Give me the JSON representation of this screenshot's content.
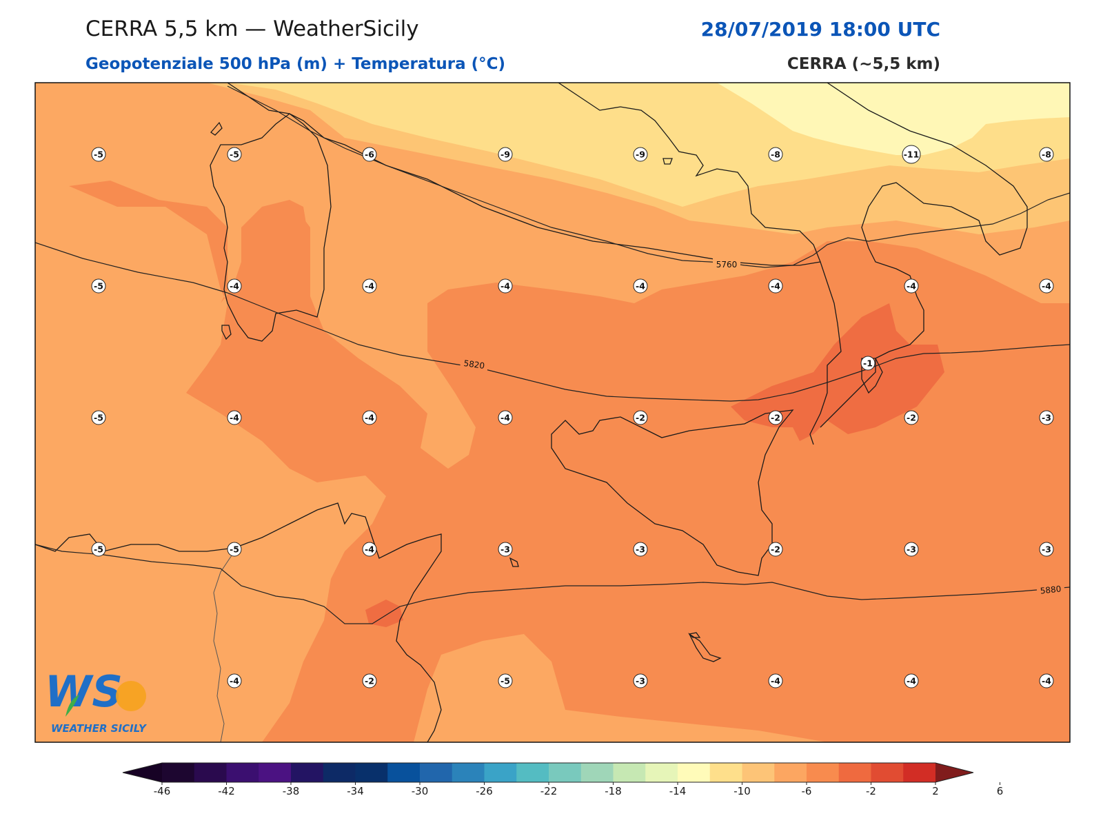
{
  "header": {
    "title": "CERRA 5,5 km — WeatherSicily",
    "datetime": "28/07/2019 18:00 UTC",
    "subtitle": "Geopotenziale 500 hPa (m) + Temperatura (°C)",
    "model": "CERRA (~5,5 km)"
  },
  "isohypses": {
    "labels": [
      "5760",
      "5820",
      "5880"
    ]
  },
  "temperature_points": {
    "rows": [
      [
        "-5",
        "-5",
        "-6",
        "-9",
        "-9",
        "-8",
        "-11",
        "-8"
      ],
      [
        "-5",
        "-4",
        "-4",
        "-4",
        "-4",
        "-4",
        "-4",
        "-4"
      ],
      [
        "-5",
        "-4",
        "-4",
        "-4",
        "-2",
        "-2",
        "-2",
        "-3"
      ],
      [
        "-5",
        "-5",
        "-4",
        "-3",
        "-3",
        "-2",
        "-3",
        "-3"
      ],
      [
        "",
        "-4",
        "-2",
        "-5",
        "-3",
        "-4",
        "-4",
        "-4"
      ]
    ],
    "extra": "-1"
  },
  "colorbar": {
    "ticks": [
      "-46",
      "-42",
      "-38",
      "-34",
      "-30",
      "-26",
      "-22",
      "-18",
      "-14",
      "-10",
      "-6",
      "-2",
      "2",
      "6"
    ],
    "colors": [
      "#1d0630",
      "#2a0a4e",
      "#3b0f70",
      "#4b1282",
      "#231463",
      "#0d2a66",
      "#08306b",
      "#08519c",
      "#2166ac",
      "#2b83ba",
      "#3aa3c7",
      "#54bcc2",
      "#79c9bd",
      "#9fd6b8",
      "#c6e8b3",
      "#e6f5b8",
      "#fffbb9",
      "#fedf8b",
      "#fdc477",
      "#fca661",
      "#f88b4e",
      "#ef6a3f",
      "#e14c32",
      "#d22d25"
    ],
    "under_color": "#170225",
    "over_color": "#801c1c"
  },
  "logo": {
    "letters": "WS",
    "name": "WEATHER SICILY"
  },
  "field_colors": {
    "t_minus_10": "#fff7b6",
    "t_minus_8": "#fede8a",
    "t_minus_6": "#fdc574",
    "t_minus_4": "#fca862",
    "t_minus_2": "#f78c50",
    "t_0": "#ef6d42",
    "coast": "#1a1a1a"
  }
}
